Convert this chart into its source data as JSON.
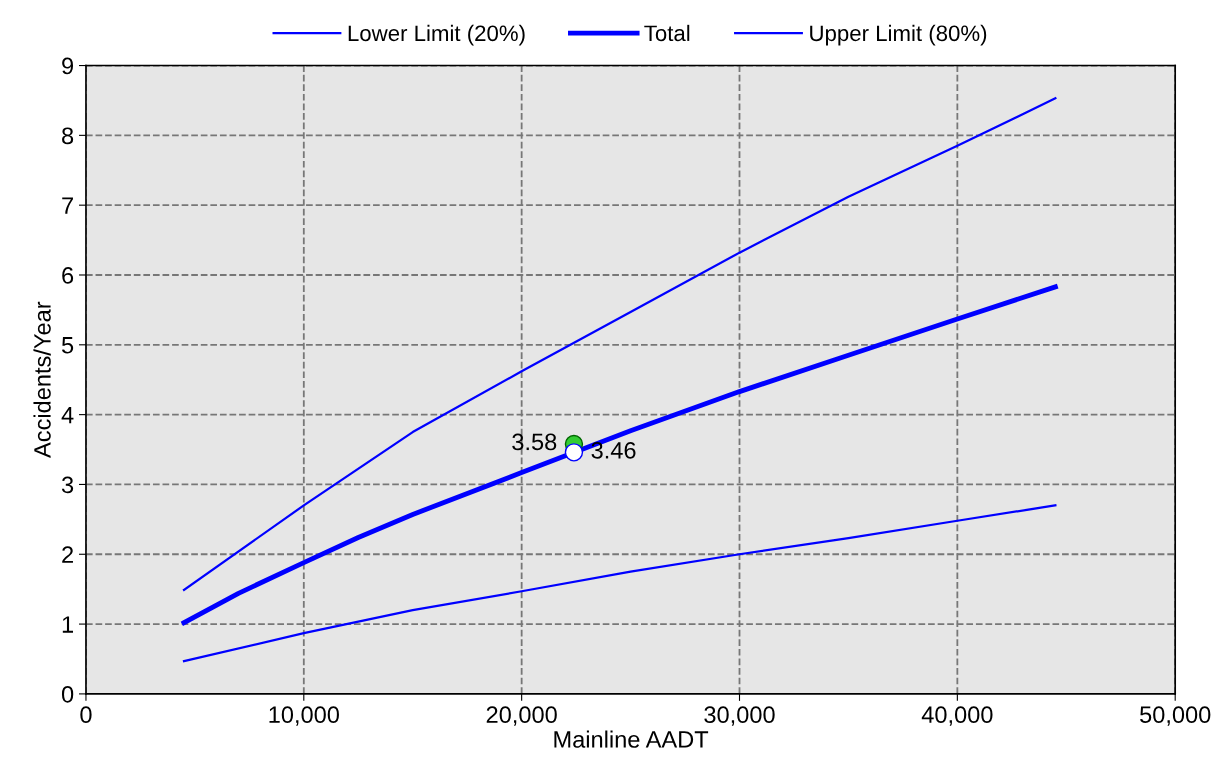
{
  "chart_data": {
    "type": "line",
    "xlabel": "Mainline AADT",
    "ylabel": "Accidents/Year",
    "xlim": [
      0,
      50000
    ],
    "ylim": [
      0,
      9
    ],
    "xticks": [
      0,
      {
        "value": 10000,
        "label": "10,000"
      },
      {
        "value": 20000,
        "label": "20,000"
      },
      {
        "value": 30000,
        "label": "30,000"
      },
      {
        "value": 40000,
        "label": "40,000"
      },
      {
        "value": 50000,
        "label": "50,000"
      }
    ],
    "yticks": [
      0,
      1,
      2,
      3,
      4,
      5,
      6,
      7,
      8,
      9
    ],
    "grid": true,
    "legend": "top",
    "line_style": "solid",
    "series": [
      {
        "name": "Lower Limit (20%)",
        "color": "#0000ff",
        "x": [
          4500,
          10000,
          15000,
          20000,
          25000,
          30000,
          35000,
          40000,
          44500
        ],
        "values": [
          0.47,
          0.87,
          1.2,
          1.47,
          1.75,
          2.0,
          2.23,
          2.48,
          2.7
        ]
      },
      {
        "name": "Total",
        "color": "#0000ff",
        "x": [
          4500,
          7000,
          10000,
          12500,
          15000,
          20000,
          25000,
          30000,
          35000,
          40000,
          44500
        ],
        "values": [
          1.02,
          1.44,
          1.88,
          2.24,
          2.57,
          3.17,
          3.77,
          4.33,
          4.85,
          5.37,
          5.83
        ]
      },
      {
        "name": "Upper Limit (80%)",
        "color": "#0000ff",
        "x": [
          4500,
          10000,
          15000,
          20000,
          25000,
          30000,
          35000,
          40000,
          44500
        ],
        "values": [
          1.49,
          2.7,
          3.75,
          4.62,
          5.47,
          6.32,
          7.12,
          7.85,
          8.53
        ]
      },
      {
        "type": "scatter",
        "marker": "circle",
        "color": "#33cc33",
        "x": [
          22400
        ],
        "values": [
          3.58
        ],
        "value_labels": [
          "3.58"
        ]
      },
      {
        "type": "scatter",
        "marker": "circle",
        "color": "#ffffff",
        "x": [
          22400
        ],
        "values": [
          3.46
        ],
        "value_labels": [
          "3.46"
        ]
      }
    ]
  }
}
